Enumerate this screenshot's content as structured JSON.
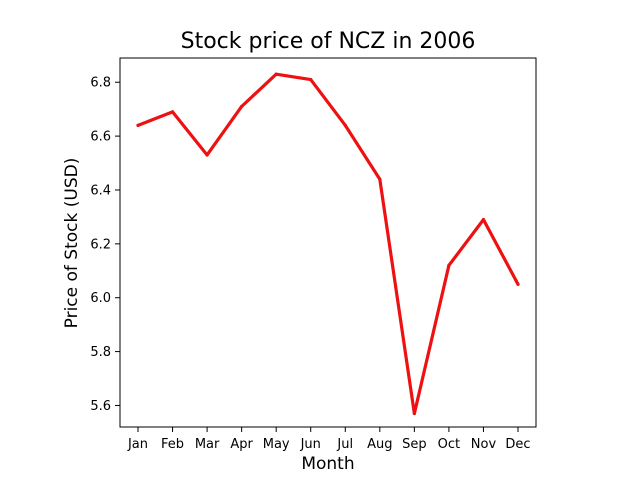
{
  "chart_data": {
    "type": "line",
    "title": "Stock price of NCZ in 2006",
    "xlabel": "Month",
    "ylabel": "Price of Stock (USD)",
    "categories": [
      "Jan",
      "Feb",
      "Mar",
      "Apr",
      "May",
      "Jun",
      "Jul",
      "Aug",
      "Sep",
      "Oct",
      "Nov",
      "Dec"
    ],
    "series": [
      {
        "values": [
          6.64,
          6.69,
          6.53,
          6.71,
          6.83,
          6.81,
          6.64,
          6.44,
          5.57,
          6.12,
          6.29,
          6.05
        ],
        "color": "#ee1111"
      }
    ],
    "ylim": [
      5.52,
      6.89
    ],
    "yticks": [
      "5.6",
      "5.8",
      "6.0",
      "6.2",
      "6.4",
      "6.6",
      "6.8"
    ],
    "grid": false,
    "legend": "none"
  }
}
